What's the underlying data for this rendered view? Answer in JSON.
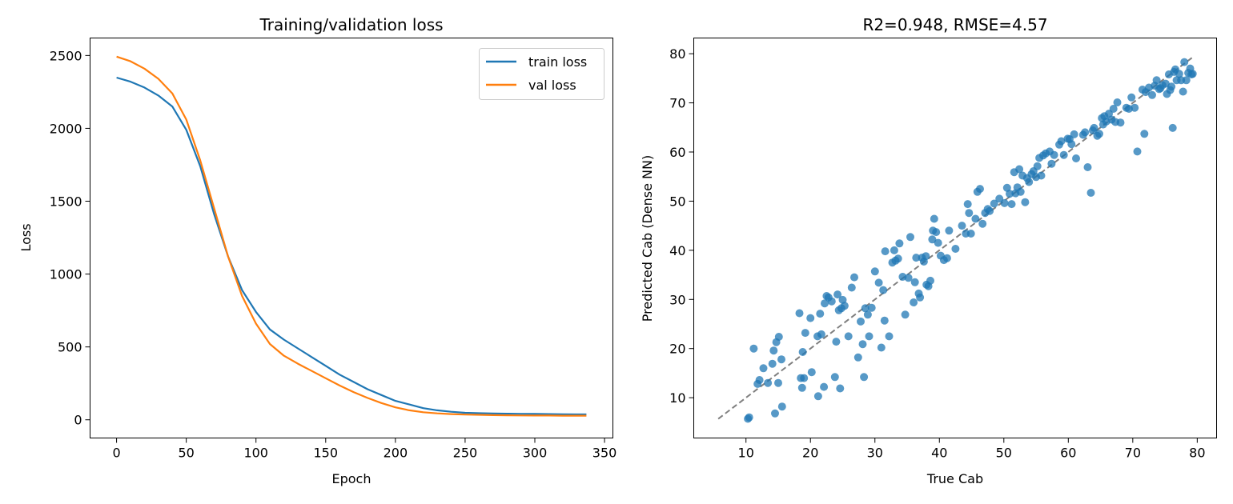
{
  "colors": {
    "train": "#1f77b4",
    "val": "#ff7f0e",
    "scatter": "#1f77b4",
    "identity": "#7f7f7f"
  },
  "chart_data": [
    {
      "type": "line",
      "title": "Training/validation loss",
      "xlabel": "Epoch",
      "ylabel": "Loss",
      "xlim": [
        -19,
        356
      ],
      "ylim": [
        -125,
        2620
      ],
      "xticks": [
        0,
        50,
        100,
        150,
        200,
        250,
        300,
        350
      ],
      "yticks": [
        0,
        500,
        1000,
        1500,
        2000,
        2500
      ],
      "legend": "top-right",
      "grid": false,
      "series": [
        {
          "name": "train loss",
          "color": "#1f77b4",
          "x": [
            0,
            10,
            20,
            30,
            40,
            50,
            60,
            70,
            80,
            90,
            100,
            110,
            120,
            130,
            140,
            150,
            160,
            170,
            180,
            190,
            200,
            210,
            220,
            230,
            240,
            250,
            260,
            270,
            280,
            290,
            300,
            310,
            320,
            330,
            337
          ],
          "y": [
            2348,
            2320,
            2280,
            2225,
            2150,
            1990,
            1740,
            1410,
            1120,
            890,
            740,
            620,
            550,
            490,
            430,
            370,
            310,
            260,
            210,
            170,
            130,
            105,
            80,
            65,
            55,
            48,
            45,
            43,
            42,
            41,
            40,
            39,
            38,
            37,
            37
          ]
        },
        {
          "name": "val loss",
          "color": "#ff7f0e",
          "x": [
            0,
            10,
            20,
            30,
            40,
            50,
            60,
            70,
            80,
            90,
            100,
            110,
            120,
            130,
            140,
            150,
            160,
            170,
            180,
            190,
            200,
            210,
            220,
            230,
            240,
            250,
            260,
            270,
            280,
            290,
            300,
            310,
            320,
            330,
            337
          ],
          "y": [
            2492,
            2460,
            2410,
            2340,
            2240,
            2060,
            1780,
            1450,
            1120,
            850,
            660,
            520,
            440,
            385,
            335,
            285,
            235,
            190,
            150,
            115,
            85,
            65,
            52,
            44,
            39,
            36,
            34,
            32,
            31,
            30,
            29,
            29,
            28,
            28,
            28
          ]
        }
      ]
    },
    {
      "type": "scatter",
      "title": "R2=0.948, RMSE=4.57",
      "xlabel": "True Cab",
      "ylabel": "Predicted Cab (Dense NN)",
      "xlim": [
        1.9,
        83.0
      ],
      "ylim": [
        1.8,
        83.2
      ],
      "xticks": [
        10,
        20,
        30,
        40,
        50,
        60,
        70,
        80
      ],
      "yticks": [
        10,
        20,
        30,
        40,
        50,
        60,
        70,
        80
      ],
      "identity_line": {
        "from": 5.7,
        "to": 79.5,
        "style": "dashed"
      },
      "grid": false,
      "points": [
        [
          10.3,
          5.7
        ],
        [
          10.5,
          6.0
        ],
        [
          11.2,
          20.0
        ],
        [
          11.8,
          12.8
        ],
        [
          12.1,
          13.6
        ],
        [
          12.7,
          16.0
        ],
        [
          13.4,
          13.0
        ],
        [
          14.1,
          16.9
        ],
        [
          14.3,
          19.6
        ],
        [
          14.5,
          6.8
        ],
        [
          14.7,
          21.3
        ],
        [
          15.0,
          13.0
        ],
        [
          15.1,
          22.4
        ],
        [
          15.5,
          17.8
        ],
        [
          15.6,
          8.2
        ],
        [
          18.3,
          27.2
        ],
        [
          18.5,
          14.0
        ],
        [
          18.7,
          12.0
        ],
        [
          18.8,
          19.3
        ],
        [
          19.2,
          23.2
        ],
        [
          19.0,
          14.0
        ],
        [
          20.0,
          26.2
        ],
        [
          20.2,
          15.2
        ],
        [
          21.1,
          22.5
        ],
        [
          21.2,
          10.3
        ],
        [
          21.5,
          27.1
        ],
        [
          21.7,
          22.9
        ],
        [
          22.1,
          12.2
        ],
        [
          22.2,
          29.2
        ],
        [
          22.5,
          30.7
        ],
        [
          22.8,
          30.4
        ],
        [
          23.3,
          29.6
        ],
        [
          23.8,
          14.2
        ],
        [
          24.0,
          21.4
        ],
        [
          24.2,
          31.0
        ],
        [
          24.4,
          27.8
        ],
        [
          24.6,
          11.9
        ],
        [
          24.8,
          28.2
        ],
        [
          25.0,
          29.9
        ],
        [
          25.3,
          28.7
        ],
        [
          25.9,
          22.5
        ],
        [
          26.4,
          32.4
        ],
        [
          26.8,
          34.5
        ],
        [
          27.4,
          18.2
        ],
        [
          27.8,
          25.5
        ],
        [
          28.1,
          20.9
        ],
        [
          28.3,
          14.2
        ],
        [
          28.5,
          28.2
        ],
        [
          28.9,
          26.9
        ],
        [
          29.1,
          22.5
        ],
        [
          29.5,
          28.3
        ],
        [
          30.0,
          35.7
        ],
        [
          30.6,
          33.4
        ],
        [
          31.0,
          20.2
        ],
        [
          31.3,
          31.9
        ],
        [
          31.5,
          25.7
        ],
        [
          31.6,
          39.8
        ],
        [
          32.2,
          22.5
        ],
        [
          32.7,
          37.5
        ],
        [
          33.0,
          40.0
        ],
        [
          33.2,
          37.9
        ],
        [
          33.6,
          38.3
        ],
        [
          33.8,
          41.4
        ],
        [
          34.3,
          34.6
        ],
        [
          34.7,
          26.9
        ],
        [
          35.2,
          34.4
        ],
        [
          35.5,
          42.7
        ],
        [
          36.0,
          29.4
        ],
        [
          36.2,
          33.5
        ],
        [
          36.4,
          38.5
        ],
        [
          36.8,
          31.2
        ],
        [
          37.0,
          30.4
        ],
        [
          37.3,
          38.5
        ],
        [
          37.6,
          37.7
        ],
        [
          37.9,
          38.8
        ],
        [
          38.0,
          33.0
        ],
        [
          38.3,
          32.7
        ],
        [
          38.6,
          33.8
        ],
        [
          38.9,
          42.2
        ],
        [
          39.0,
          44.0
        ],
        [
          39.2,
          46.4
        ],
        [
          39.5,
          43.7
        ],
        [
          39.8,
          41.5
        ],
        [
          40.2,
          38.9
        ],
        [
          40.7,
          38.0
        ],
        [
          41.2,
          38.4
        ],
        [
          41.5,
          44.0
        ],
        [
          42.5,
          40.3
        ],
        [
          43.5,
          45.0
        ],
        [
          44.1,
          43.4
        ],
        [
          44.4,
          49.4
        ],
        [
          44.6,
          47.6
        ],
        [
          44.9,
          43.4
        ],
        [
          45.6,
          46.4
        ],
        [
          45.9,
          51.9
        ],
        [
          46.3,
          52.5
        ],
        [
          46.7,
          45.4
        ],
        [
          47.1,
          47.6
        ],
        [
          47.5,
          48.4
        ],
        [
          47.8,
          48.0
        ],
        [
          48.5,
          49.5
        ],
        [
          49.3,
          50.5
        ],
        [
          50.1,
          49.6
        ],
        [
          50.5,
          52.7
        ],
        [
          50.9,
          51.5
        ],
        [
          51.2,
          49.4
        ],
        [
          51.6,
          55.9
        ],
        [
          51.8,
          51.6
        ],
        [
          52.1,
          52.8
        ],
        [
          52.4,
          56.5
        ],
        [
          52.6,
          51.9
        ],
        [
          52.9,
          55.2
        ],
        [
          53.3,
          49.8
        ],
        [
          53.6,
          54.7
        ],
        [
          53.9,
          53.9
        ],
        [
          54.3,
          55.5
        ],
        [
          54.6,
          56.1
        ],
        [
          55.0,
          54.9
        ],
        [
          55.2,
          57.1
        ],
        [
          55.5,
          58.8
        ],
        [
          55.8,
          55.2
        ],
        [
          56.1,
          59.3
        ],
        [
          56.5,
          59.7
        ],
        [
          57.1,
          60.1
        ],
        [
          57.4,
          57.6
        ],
        [
          57.8,
          59.4
        ],
        [
          58.6,
          61.5
        ],
        [
          58.9,
          62.2
        ],
        [
          59.3,
          59.4
        ],
        [
          59.9,
          62.7
        ],
        [
          60.2,
          62.6
        ],
        [
          60.5,
          61.6
        ],
        [
          60.9,
          63.6
        ],
        [
          61.2,
          58.7
        ],
        [
          62.3,
          63.5
        ],
        [
          62.6,
          64.0
        ],
        [
          63.0,
          56.9
        ],
        [
          63.5,
          51.7
        ],
        [
          63.8,
          64.4
        ],
        [
          64.0,
          64.9
        ],
        [
          64.5,
          63.3
        ],
        [
          64.8,
          63.7
        ],
        [
          65.2,
          66.9
        ],
        [
          65.4,
          65.6
        ],
        [
          65.6,
          67.3
        ],
        [
          65.9,
          66.2
        ],
        [
          66.3,
          67.8
        ],
        [
          66.7,
          66.6
        ],
        [
          67.0,
          68.8
        ],
        [
          67.3,
          66.1
        ],
        [
          67.6,
          70.1
        ],
        [
          68.1,
          66.0
        ],
        [
          69.0,
          69.0
        ],
        [
          69.4,
          68.8
        ],
        [
          69.8,
          71.1
        ],
        [
          70.3,
          69.0
        ],
        [
          70.7,
          60.1
        ],
        [
          71.5,
          72.7
        ],
        [
          71.8,
          63.7
        ],
        [
          72.0,
          72.2
        ],
        [
          72.5,
          73.1
        ],
        [
          73.0,
          71.6
        ],
        [
          73.4,
          73.5
        ],
        [
          73.7,
          74.6
        ],
        [
          74.1,
          72.8
        ],
        [
          74.3,
          73.0
        ],
        [
          74.6,
          73.6
        ],
        [
          75.1,
          73.9
        ],
        [
          75.3,
          71.8
        ],
        [
          75.6,
          75.8
        ],
        [
          75.8,
          72.6
        ],
        [
          76.0,
          73.3
        ],
        [
          76.2,
          64.9
        ],
        [
          76.4,
          76.3
        ],
        [
          76.6,
          76.8
        ],
        [
          76.8,
          74.6
        ],
        [
          77.2,
          75.9
        ],
        [
          77.5,
          74.6
        ],
        [
          77.8,
          72.3
        ],
        [
          78.0,
          78.3
        ],
        [
          78.3,
          74.6
        ],
        [
          78.6,
          76.1
        ],
        [
          78.9,
          77.0
        ],
        [
          79.1,
          75.8
        ],
        [
          79.3,
          75.9
        ]
      ]
    }
  ]
}
